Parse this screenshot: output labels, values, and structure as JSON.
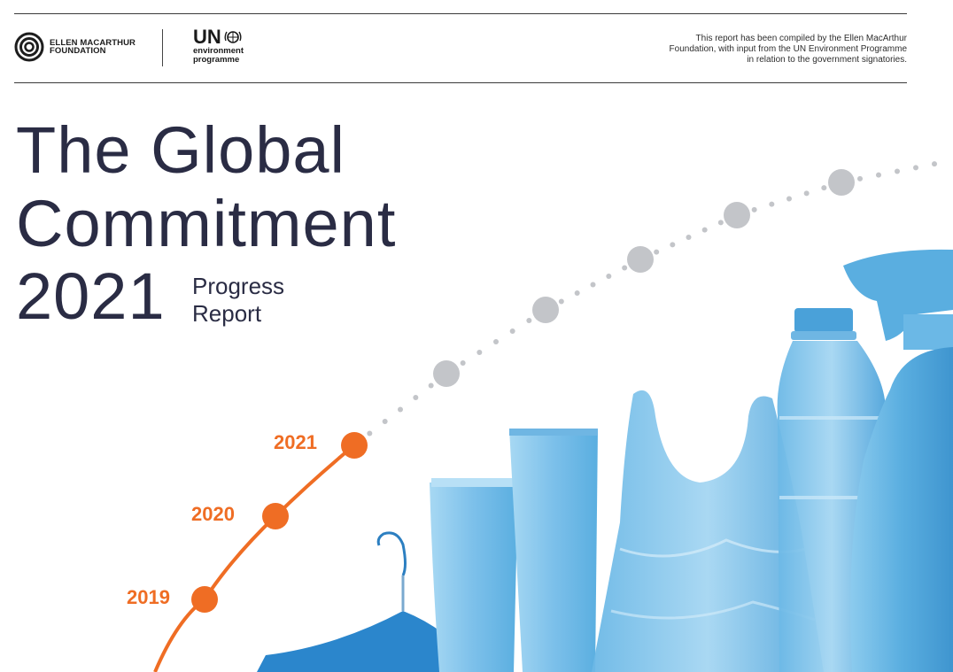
{
  "header": {
    "emf_logo_line1": "ELLEN MACARTHUR",
    "emf_logo_line2": "FOUNDATION",
    "un_logo_main": "UN",
    "un_logo_line1": "environment",
    "un_logo_line2": "programme",
    "compiled_note_line1": "This report has been compiled by the Ellen MacArthur",
    "compiled_note_line2": "Foundation, with input from the UN Environment Programme",
    "compiled_note_line3": "in relation to the government signatories."
  },
  "title": {
    "line1": "The Global",
    "line2": "Commitment",
    "year": "2021",
    "subtitle_line1": "Progress",
    "subtitle_line2": "Report"
  },
  "timeline": {
    "milestones": [
      "2019",
      "2020",
      "2021"
    ],
    "accent_color": "#ef6d24",
    "future_dot_color": "#c3c5c9"
  },
  "colors": {
    "title_text": "#2a2c44",
    "product_blue": "#5aaee0",
    "rule": "#3a3a3a"
  }
}
